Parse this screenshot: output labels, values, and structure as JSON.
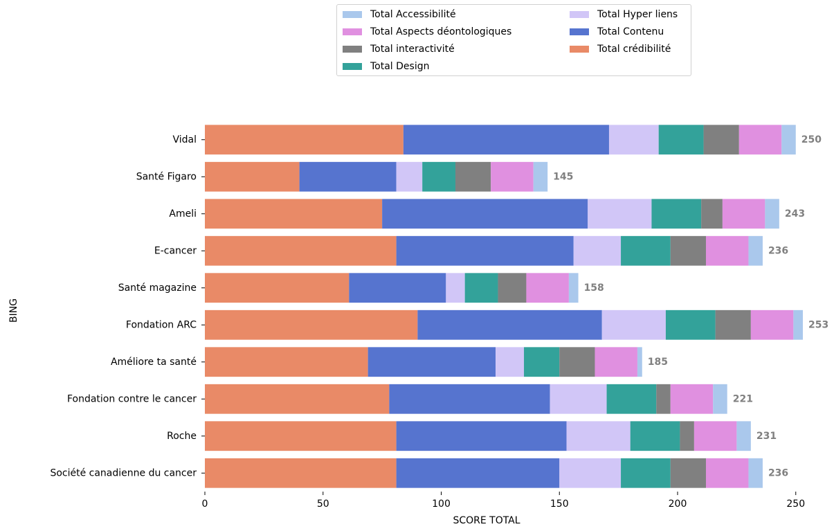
{
  "chart_data": {
    "type": "bar",
    "orientation": "horizontal",
    "stacked": true,
    "ylabel": "BING",
    "xlabel": "SCORE TOTAL",
    "xlim": [
      0,
      253
    ],
    "xticks": [
      0,
      50,
      100,
      150,
      200,
      250
    ],
    "categories": [
      "Vidal",
      "Santé Figaro",
      "Ameli",
      "E-cancer",
      "Santé magazine",
      "Fondation ARC",
      "Améliore ta santé",
      "Fondation contre le cancer ",
      "Roche",
      "Société canadienne du cancer"
    ],
    "totals": [
      250,
      145,
      243,
      236,
      158,
      253,
      185,
      221,
      231,
      236
    ],
    "series": [
      {
        "name": "Total crédibilité",
        "color": "#e98a67",
        "values": [
          84,
          40,
          75,
          81,
          61,
          90,
          69,
          78,
          81,
          81
        ]
      },
      {
        "name": "Total Contenu",
        "color": "#5674cf",
        "values": [
          87,
          41,
          87,
          75,
          41,
          78,
          54,
          68,
          72,
          69
        ]
      },
      {
        "name": "Total Hyper liens",
        "color": "#d1c6f7",
        "values": [
          21,
          11,
          27,
          20,
          8,
          27,
          12,
          24,
          27,
          26
        ]
      },
      {
        "name": "Total Design",
        "color": "#33a29a",
        "values": [
          19,
          14,
          21,
          21,
          14,
          21,
          15,
          21,
          21,
          21
        ]
      },
      {
        "name": "Total interactivité",
        "color": "#808080",
        "values": [
          15,
          15,
          9,
          15,
          12,
          15,
          15,
          6,
          6,
          15
        ]
      },
      {
        "name": "Total Aspects déontologiques",
        "color": "#e090e0",
        "values": [
          18,
          18,
          18,
          18,
          18,
          18,
          18,
          18,
          18,
          18
        ]
      },
      {
        "name": "Total Accessibilité",
        "color": "#aac8ec",
        "values": [
          6,
          6,
          6,
          6,
          4,
          4,
          2,
          6,
          6,
          6
        ]
      }
    ],
    "legend": {
      "position": "top-center",
      "order": [
        "Total Accessibilité",
        "Total Aspects déontologiques",
        "Total interactivité",
        "Total Design",
        "Total Hyper liens",
        "Total Contenu",
        "Total crédibilité"
      ]
    },
    "total_label_color": "#808080",
    "grid": false
  }
}
